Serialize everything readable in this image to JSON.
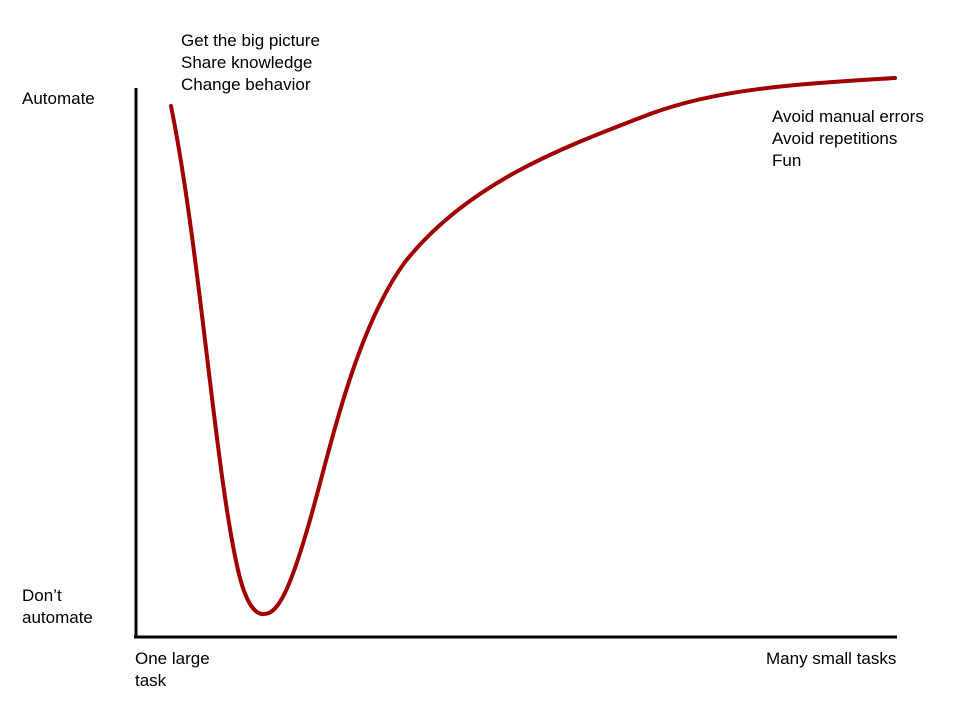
{
  "y_axis": {
    "top_label": "Automate",
    "bottom_label": [
      "Don’t",
      "automate"
    ]
  },
  "x_axis": {
    "left_label": [
      "One large",
      "task"
    ],
    "right_label": "Many small tasks"
  },
  "annotations": {
    "left": [
      "Get the big picture",
      "Share knowledge",
      "Change behavior"
    ],
    "right": [
      "Avoid manual errors",
      "Avoid repetitions",
      "Fun"
    ]
  },
  "colors": {
    "curve": "#a00000",
    "axes": "#000000"
  }
}
